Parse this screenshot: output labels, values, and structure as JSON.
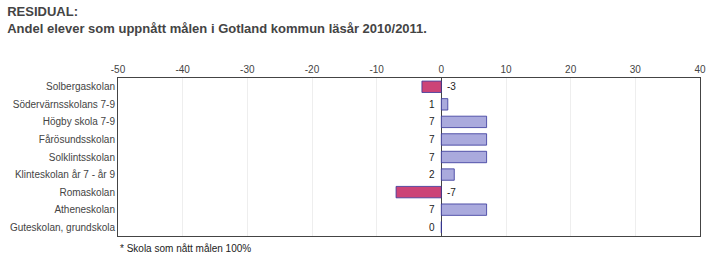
{
  "chart_data": {
    "type": "bar",
    "orientation": "horizontal",
    "title": "RESIDUAL:",
    "subtitle": "Andel elever som uppnått målen i Gotland kommun läsår 2010/2011.",
    "annotations": [
      "* Skola som nått målen 100%"
    ],
    "categories": [
      "Solbergaskolan",
      "Södervärnsskolans 7-9",
      "Högby skola 7-9",
      "Fårösundsskolan",
      "Solklintsskolan",
      "Klinteskolan år 7 - år 9",
      "Romaskolan",
      "Atheneskolan",
      "Guteskolan, grundskola"
    ],
    "values": [
      -3,
      1,
      7,
      7,
      7,
      2,
      -7,
      7,
      0
    ],
    "colors": [
      "#cc4477",
      "#aaaadd",
      "#aaaadd",
      "#aaaadd",
      "#aaaadd",
      "#aaaadd",
      "#cc4477",
      "#aaaadd",
      "#aaaadd"
    ],
    "xlim": [
      -50,
      40
    ],
    "xticks": [
      -50,
      -40,
      -30,
      -20,
      -10,
      0,
      10,
      20,
      30,
      40
    ],
    "grid": true,
    "data_labels": true
  }
}
